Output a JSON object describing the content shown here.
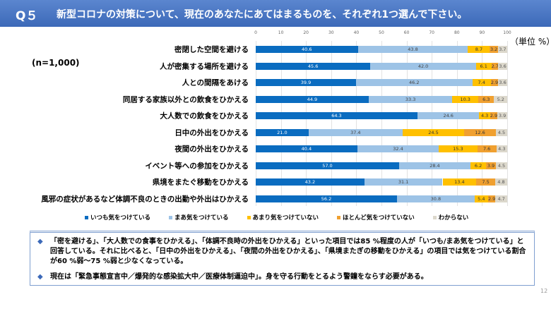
{
  "header": {
    "qno": "Q５",
    "question": "新型コロナの対策について、現在のあなたにあてはまるものを、それぞれ1つ選んで下さい。"
  },
  "sample": "(n=1,000)",
  "unit": "（単位 %）",
  "chart_data": {
    "type": "bar",
    "orientation": "horizontal",
    "stacked": true,
    "xlim": [
      0,
      100
    ],
    "xticks": [
      0,
      10,
      20,
      30,
      40,
      50,
      60,
      70,
      80,
      90,
      100
    ],
    "grid": true,
    "legend_position": "bottom",
    "categories": [
      "密閉した空間を避ける",
      "人が密集する場所を避ける",
      "人との間隔をあける",
      "同居する家族以外との飲食をひかえる",
      "大人数での飲食をひかえる",
      "日中の外出をひかえる",
      "夜間の外出をひかえる",
      "イベント等への参加をひかえる",
      "県境をまたぐ移動をひかえる",
      "風邪の症状があるなど体調不良のときの出勤や外出はひかえる"
    ],
    "series": [
      {
        "name": "いつも気をつけている",
        "color": "#0a6cc0",
        "values": [
          40.6,
          45.6,
          39.9,
          44.9,
          64.3,
          21.0,
          40.4,
          57.0,
          43.2,
          56.2
        ]
      },
      {
        "name": "まあ気をつけている",
        "color": "#9dc3e6",
        "values": [
          43.8,
          42.0,
          46.2,
          33.3,
          24.6,
          37.4,
          32.4,
          28.4,
          31.1,
          30.8
        ]
      },
      {
        "name": "あまり気をつけていない",
        "color": "#ffc000",
        "values": [
          8.7,
          6.1,
          7.4,
          10.3,
          4.3,
          24.5,
          15.3,
          6.2,
          13.4,
          5.4
        ]
      },
      {
        "name": "ほとんど気をつけていない",
        "color": "#f0a030",
        "values": [
          3.2,
          2.7,
          2.9,
          6.3,
          2.9,
          12.6,
          7.6,
          3.9,
          7.5,
          2.9
        ]
      },
      {
        "name": "わからない",
        "color": "#dcd8cc",
        "values": [
          3.7,
          3.6,
          3.6,
          5.2,
          3.9,
          4.5,
          4.3,
          4.5,
          4.8,
          4.7
        ]
      }
    ]
  },
  "notes": [
    "「密を避ける」、「大人数での食事をひかえる」、「体調不良時の外出をひかえる」といった項目では85 %程度の人が「いつも/まあ気をつけている」と回答している。それに比べると、「日中の外出をひかえる」、「夜間の外出をひかえる」、「県境またぎの移動をひかえる」の項目では気をつけている割合が60 %弱～75 %弱と少なくなっている。",
    "現在は「緊急事態宣言中／爆発的な感染拡大中／医療体制逼迫中」。身を守る行動をとるよう警鐘をならす必要がある。"
  ],
  "page": "12"
}
